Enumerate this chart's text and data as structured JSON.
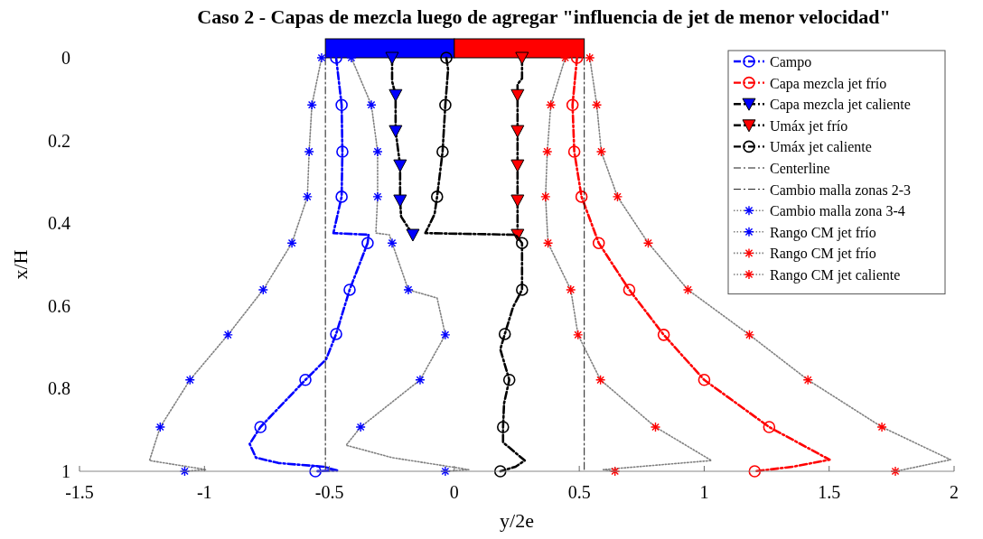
{
  "chart_data": {
    "type": "line",
    "title": "Caso 2 - Capas de mezcla luego de agregar \"influencia de jet de menor velocidad\"",
    "xlabel": "y/2e",
    "ylabel": "x/H",
    "xlim": [
      -1.5,
      2
    ],
    "ylim": [
      1,
      0
    ],
    "xticks": [
      -1.5,
      -1,
      -0.5,
      0,
      0.5,
      1,
      1.5,
      2
    ],
    "yticks": [
      0,
      0.2,
      0.4,
      0.6,
      0.8,
      1
    ],
    "legend": "top right",
    "grid": false,
    "series": [
      {
        "name": "Campo",
        "color": "#0000ff",
        "marker": "circle",
        "line_style": "dashed",
        "x": [
          -0.473,
          -0.451,
          -0.448,
          -0.451,
          -0.484,
          -0.343,
          -0.347,
          -0.419,
          -0.473,
          -0.513,
          -0.596,
          -0.776,
          -0.819,
          -0.794,
          -0.704,
          -0.523,
          -0.469,
          -0.556
        ],
        "values": [
          0,
          0.114,
          0.227,
          0.336,
          0.424,
          0.428,
          0.448,
          0.561,
          0.668,
          0.729,
          0.779,
          0.893,
          0.934,
          0.967,
          0.98,
          0.989,
          0.998,
          1
        ],
        "colors": [
          "#0000ff",
          "#0000ff",
          "#0000ff",
          "#0000ff",
          null,
          null,
          "#0000ff",
          "#0000ff",
          "#0000ff",
          null,
          "#0000ff",
          "#0000ff",
          null,
          null,
          null,
          null,
          null,
          "#0000ff"
        ]
      },
      {
        "name": "Capa mezcla jet frío",
        "color": "#ff0000",
        "marker": "circle",
        "line_style": "dashed",
        "x": [
          0.491,
          0.473,
          0.48,
          0.509,
          0.578,
          0.7,
          0.838,
          1.0,
          1.26,
          1.502,
          1.354,
          1.202
        ],
        "values": [
          0,
          0.114,
          0.227,
          0.336,
          0.448,
          0.561,
          0.67,
          0.779,
          0.893,
          0.972,
          0.989,
          1
        ],
        "colors": [
          "#ff0000",
          "#ff0000",
          "#ff0000",
          "#ff0000",
          "#ff0000",
          "#ff0000",
          "#ff0000",
          "#ff0000",
          "#ff0000",
          null,
          null,
          "#ff0000"
        ]
      },
      {
        "name": "Capa mezcla jet caliente",
        "color": "#000000",
        "marker": "triangle",
        "line_style": "dashed",
        "x": [
          -0.249,
          -0.249,
          -0.235,
          -0.235,
          -0.217,
          -0.217,
          -0.213,
          -0.166
        ],
        "values": [
          0,
          0.057,
          0.09,
          0.177,
          0.26,
          0.345,
          0.384,
          0.428
        ],
        "colors": [
          "#0000ff",
          null,
          "#0000ff",
          "#0000ff",
          "#0000ff",
          "#0000ff",
          null,
          "#0000ff"
        ]
      },
      {
        "name": "Umáx jet frío",
        "color": "#000000",
        "marker": "triangle",
        "line_style": "dashed",
        "x": [
          0.271,
          0.271,
          0.253,
          0.253,
          0.253,
          0.253,
          0.253,
          0.253
        ],
        "values": [
          0,
          0.05,
          0.064,
          0.09,
          0.177,
          0.26,
          0.345,
          0.428
        ],
        "colors": [
          "#ff0000",
          null,
          null,
          "#ff0000",
          "#ff0000",
          "#ff0000",
          "#ff0000",
          "#ff0000"
        ]
      },
      {
        "name": "Umáx jet caliente",
        "color": "#000000",
        "marker": "circle",
        "line_style": "dashed",
        "x": [
          -0.032,
          -0.025,
          -0.036,
          -0.047,
          -0.069,
          -0.079,
          -0.116,
          0.245,
          0.271,
          0.271,
          0.235,
          0.202,
          0.184,
          0.22,
          0.199,
          0.195,
          0.195,
          0.282,
          0.245,
          0.184
        ],
        "values": [
          0,
          0.028,
          0.114,
          0.227,
          0.336,
          0.378,
          0.424,
          0.428,
          0.448,
          0.561,
          0.603,
          0.668,
          0.705,
          0.779,
          0.836,
          0.893,
          0.93,
          0.974,
          0.989,
          1
        ],
        "colors": [
          "#000000",
          null,
          "#000000",
          "#000000",
          "#000000",
          null,
          null,
          null,
          "#000000",
          "#000000",
          null,
          "#000000",
          null,
          "#000000",
          null,
          "#000000",
          null,
          null,
          null,
          "#000000"
        ]
      },
      {
        "name": "Centerline",
        "color": "#000000",
        "marker": "none",
        "line_style": "dashed",
        "x": [
          -0.516,
          -0.516
        ],
        "values": [
          0,
          1
        ]
      },
      {
        "name": "Cambio malla zonas 2-3",
        "color": "#000000",
        "marker": "none",
        "line_style": "dashed",
        "x": [
          0.52,
          0.52
        ],
        "values": [
          0,
          1
        ]
      },
      {
        "name": "Cambio malla zona 3-4",
        "color": "#808080",
        "marker": "cross",
        "line_style": "dotted",
        "x": [
          -0.531,
          -0.57,
          -0.581,
          -0.588,
          -0.65,
          -0.765,
          -0.906,
          -1.058,
          -1.177,
          -1.22,
          -0.993,
          -1.079
        ],
        "values": [
          0,
          0.114,
          0.227,
          0.336,
          0.448,
          0.561,
          0.67,
          0.779,
          0.893,
          0.974,
          0.996,
          1
        ],
        "colors": [
          "#0000ff",
          "#0000ff",
          "#0000ff",
          "#0000ff",
          "#0000ff",
          "#0000ff",
          "#0000ff",
          "#0000ff",
          "#0000ff",
          null,
          null,
          "#0000ff"
        ]
      },
      {
        "name": "Rango CM jet frío",
        "color": "#808080",
        "marker": "cross",
        "line_style": "dotted",
        "x": [
          -0.412,
          -0.332,
          -0.307,
          -0.307,
          -0.314,
          -0.26,
          -0.249,
          -0.184,
          -0.069,
          -0.036,
          -0.137,
          -0.375,
          -0.433,
          -0.249,
          0.058,
          -0.036
        ],
        "values": [
          0,
          0.114,
          0.227,
          0.336,
          0.424,
          0.428,
          0.448,
          0.561,
          0.581,
          0.67,
          0.779,
          0.893,
          0.937,
          0.967,
          0.996,
          1
        ],
        "colors": [
          "#0000ff",
          "#0000ff",
          "#0000ff",
          "#0000ff",
          null,
          null,
          "#0000ff",
          "#0000ff",
          null,
          "#0000ff",
          "#0000ff",
          "#0000ff",
          null,
          null,
          null,
          "#0000ff"
        ]
      },
      {
        "name": "Rango CM jet frío",
        "color": "#808080",
        "marker": "cross",
        "line_style": "dotted",
        "x": [
          0.444,
          0.386,
          0.372,
          0.365,
          0.375,
          0.466,
          0.495,
          0.585,
          0.805,
          1.029,
          0.596,
          0.643
        ],
        "values": [
          0,
          0.114,
          0.227,
          0.336,
          0.448,
          0.561,
          0.67,
          0.779,
          0.893,
          0.974,
          0.996,
          1
        ],
        "colors": [
          "#ff0000",
          "#ff0000",
          "#ff0000",
          "#ff0000",
          "#ff0000",
          "#ff0000",
          "#ff0000",
          "#ff0000",
          "#ff0000",
          null,
          null,
          "#ff0000"
        ]
      },
      {
        "name": "Rango CM jet caliente",
        "color": "#808080",
        "marker": "cross",
        "line_style": "dotted",
        "x": [
          0.542,
          0.57,
          0.588,
          0.653,
          0.776,
          0.935,
          1.181,
          1.415,
          1.711,
          1.986,
          1.798,
          1.765
        ],
        "values": [
          0,
          0.114,
          0.227,
          0.336,
          0.448,
          0.561,
          0.67,
          0.779,
          0.893,
          0.972,
          0.996,
          1
        ],
        "colors": [
          "#ff0000",
          "#ff0000",
          "#ff0000",
          "#ff0000",
          "#ff0000",
          "#ff0000",
          "#ff0000",
          "#ff0000",
          "#ff0000",
          null,
          null,
          "#ff0000"
        ]
      }
    ]
  }
}
